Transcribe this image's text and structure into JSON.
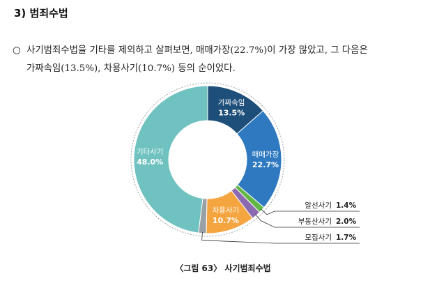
{
  "section_title": "3) 범죄수법",
  "paragraph": {
    "bullet": "○",
    "line1": "사기범죄수법을 기타를 제외하고 살펴보면, 매매가장(22.7%)이 가장 많았고, 그 다음은",
    "line2": "가짜속임(13.5%), 차용사기(10.7%) 등의 순이었다."
  },
  "chart_data": {
    "type": "pie",
    "donut": true,
    "slices": [
      {
        "label": "가짜속임",
        "value": 13.5,
        "value_label": "13.5%",
        "color": "#1e4e7a",
        "label_inside": true
      },
      {
        "label": "매매가장",
        "value": 22.7,
        "value_label": "22.7%",
        "color": "#2e79bf",
        "label_inside": true
      },
      {
        "label": "알선사기",
        "value": 1.4,
        "value_label": "1.4%",
        "color": "#62b746",
        "label_inside": false
      },
      {
        "label": "부동산사기",
        "value": 2.0,
        "value_label": "2.0%",
        "color": "#8c6ab0",
        "label_inside": false
      },
      {
        "label": "차용사기",
        "value": 10.7,
        "value_label": "10.7%",
        "color": "#f4a540",
        "label_inside": true
      },
      {
        "label": "모집사기",
        "value": 1.7,
        "value_label": "1.7%",
        "color": "#9aa1a6",
        "label_inside": false
      },
      {
        "label": "기타사기",
        "value": 48.0,
        "value_label": "48.0%",
        "color": "#6fc2c0",
        "label_inside": true
      }
    ],
    "start_angle_deg": 0,
    "direction": "clockwise",
    "outer_ring": "dashed"
  },
  "caption": "〈그림 63〉 사기범죄수법"
}
